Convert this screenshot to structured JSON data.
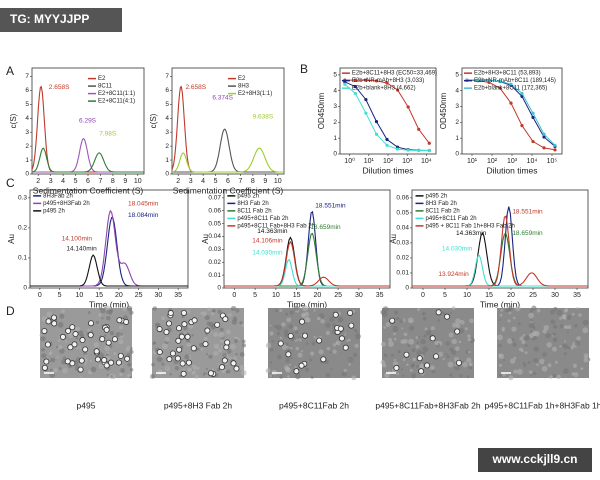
{
  "watermark_top": "TG: MYYJJPP",
  "watermark_bottom": "www.cckjll9.cn",
  "panel_labels": [
    "A",
    "B",
    "C",
    "D"
  ],
  "plots": [
    {
      "ylabel": "c(S)",
      "xlabel": "Sedimentation Coefficient (S)",
      "xticks": [
        "2",
        "3",
        "4",
        "5",
        "6",
        "7",
        "8",
        "9",
        "10"
      ],
      "yticks": [
        "0",
        "1",
        "2",
        "3",
        "4",
        "5",
        "6",
        "7"
      ],
      "legend": [
        "E2",
        "8C11",
        "E2+8C11(1:1)",
        "E2+8C11(4:1)"
      ],
      "annotations": [
        "2.658S",
        "6.29S",
        "7.98S"
      ]
    },
    {
      "ylabel": "c(S)",
      "xlabel": "Sedimentation Coefficient (S)",
      "xticks": [
        "2",
        "3",
        "4",
        "5",
        "6",
        "7",
        "8",
        "9",
        "10"
      ],
      "yticks": [
        "0",
        "1",
        "2",
        "3",
        "4",
        "5",
        "6",
        "7"
      ],
      "legend": [
        "E2",
        "8H3",
        "E2+8H3(1:1)"
      ],
      "annotations": [
        "2.658S",
        "6.374S",
        "9.638S"
      ]
    },
    {
      "ylabel": "OD450nm",
      "xlabel": "Dilution times",
      "xticks": [
        "10⁰",
        "10¹",
        "10²",
        "10³",
        "10⁴"
      ],
      "yticks": [
        "0",
        "1",
        "2",
        "3",
        "4",
        "5"
      ],
      "legend": [
        "E2b+8C11+8H3 (EC50=33,469)",
        "E2b+NR-mAb+8H3 (3,033)",
        "E2b+blank+8H3 (4,662)"
      ],
      "annotations": []
    },
    {
      "ylabel": "OD450nm",
      "xlabel": "Dilution times",
      "xticks": [
        "10¹",
        "10²",
        "10³",
        "10⁴",
        "10⁵"
      ],
      "yticks": [
        "0",
        "1",
        "2",
        "3",
        "4",
        "5"
      ],
      "legend": [
        "E2b+8H3+8C11 (53,893)",
        "E2b+NR-mAb+8C11 (189,145)",
        "E2b+blank+8C11 (172,365)"
      ],
      "annotations": []
    },
    {
      "ylabel": "Au",
      "xlabel": "Time (min)",
      "xticks": [
        "0",
        "5",
        "10",
        "15",
        "20",
        "25",
        "30",
        "35"
      ],
      "yticks": [
        "0",
        "0.1",
        "0.2",
        "0.3"
      ],
      "legend": [
        "8H3Fab 2h",
        "p495+8H3Fab 2h",
        "p495 2h"
      ],
      "annotations": [
        "18.045min",
        "18.084min",
        "14.100min",
        "14.140min"
      ]
    },
    {
      "ylabel": "Au",
      "xlabel": "Time (min)",
      "xticks": [
        "0",
        "5",
        "10",
        "15",
        "20",
        "25",
        "30",
        "35"
      ],
      "yticks": [
        "0",
        "0.01",
        "0.02",
        "0.03",
        "0.04",
        "0.05",
        "0.06",
        "0.07"
      ],
      "legend": [
        "p495 2h",
        "8H3 Fab 2h",
        "8C11 Fab 2h",
        "p495+8C11 Fab 2h",
        "p495+8C11 Fab+8H3 Fab 2h"
      ],
      "annotations": [
        "18.551min",
        "18.659min",
        "14.363min",
        "14.106min",
        "14.030min"
      ]
    },
    {
      "ylabel": "Au",
      "xlabel": "Time (min)",
      "xticks": [
        "0",
        "5",
        "10",
        "15",
        "20",
        "25",
        "30",
        "35"
      ],
      "yticks": [
        "0",
        "0.01",
        "0.02",
        "0.03",
        "0.04",
        "0.05",
        "0.06"
      ],
      "legend": [
        "p495 2h",
        "8H3 Fab 2h",
        "8C11 Fab 2h",
        "p495+8C11 Fab 2h",
        "p495 + 8C11 Fab 1h+8H3 Fab 2h"
      ],
      "annotations": [
        "18.551min",
        "14.363min",
        "18.659min",
        "14.030min",
        "13.924min"
      ]
    }
  ],
  "images": [
    {
      "caption": "p495"
    },
    {
      "caption": "p495+8H3 Fab 2h"
    },
    {
      "caption": "p495+8C11Fab 2h"
    },
    {
      "caption": "p495+8C11Fab+8H3Fab 2h"
    },
    {
      "caption": "p495+8C11Fab 1h+8H3Fab 1h"
    }
  ]
}
